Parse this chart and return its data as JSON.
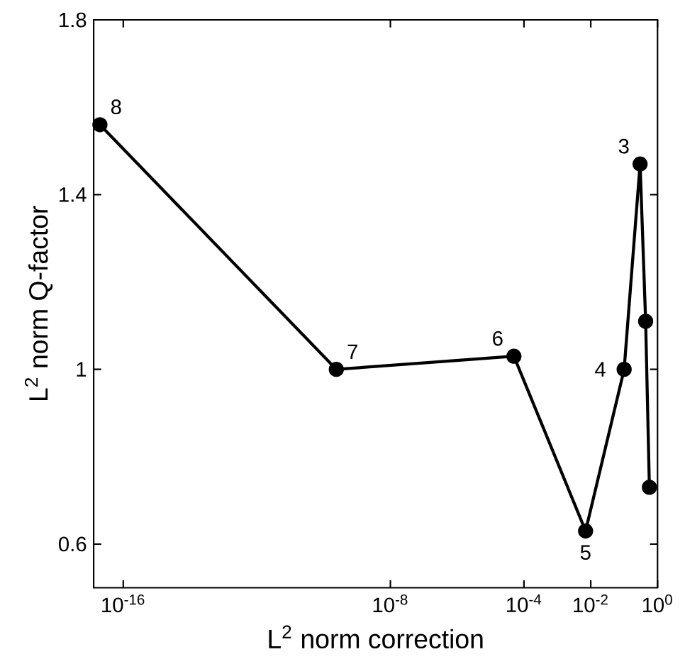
{
  "chart_data": {
    "type": "line",
    "xlabel": "L$^{2}$ norm correction",
    "ylabel": "L$^{2}$ norm Q-factor",
    "log": "x",
    "marker": "circle",
    "line_style": "solid",
    "grid": false,
    "xlim": [
      1.3e-17,
      1
    ],
    "ylim": [
      0.5,
      1.8
    ],
    "xticks": [
      {
        "value": 1e-16,
        "label": "10$^{-16}$"
      },
      {
        "value": 1e-08,
        "label": "10$^{-8}$"
      },
      {
        "value": 0.0001,
        "label": "10$^{-4}$"
      },
      {
        "value": 0.01,
        "label": "10$^{-2}$"
      },
      {
        "value": 1,
        "label": "10$^{0}$"
      }
    ],
    "yticks": [
      0.6,
      1,
      1.4,
      1.8
    ],
    "series": [
      {
        "color": "#000000",
        "x": [
          2e-17,
          2.4e-10,
          5e-05,
          0.007,
          0.1,
          0.3,
          0.44,
          0.57
        ],
        "values": [
          1.56,
          1.0,
          1.03,
          0.63,
          1.0,
          1.47,
          1.11,
          0.73
        ]
      }
    ],
    "annotations": [
      {
        "text": "8",
        "x": 2e-17,
        "y": 1.56
      },
      {
        "text": "7",
        "x": 2.4e-10,
        "y": 1.0
      },
      {
        "text": "6",
        "x": 5e-05,
        "y": 1.03
      },
      {
        "text": "5",
        "x": 0.007,
        "y": 0.63
      },
      {
        "text": "4",
        "x": 0.1,
        "y": 1.0
      },
      {
        "text": "3",
        "x": 0.3,
        "y": 1.47
      }
    ]
  }
}
